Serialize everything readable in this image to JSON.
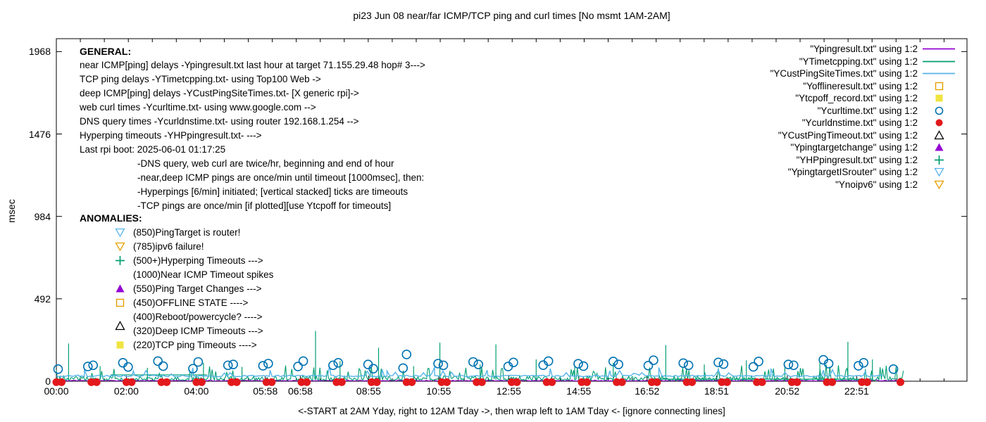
{
  "title": "pi23 Jun 08 near/far ICMP/TCP ping and curl times [No msmt 1AM-2AM]",
  "y_axis": {
    "label": "msec",
    "ticks": [
      0,
      492,
      984,
      1476,
      1968
    ]
  },
  "x_axis": {
    "ticks": [
      {
        "h": 0,
        "label": "00:00"
      },
      {
        "h": 2,
        "label": "02:00"
      },
      {
        "h": 4,
        "label": "04:00"
      },
      {
        "h": 5.967,
        "label": "05:58"
      },
      {
        "h": 6.967,
        "label": "06:58"
      },
      {
        "h": 8.917,
        "label": "08:55"
      },
      {
        "h": 10.917,
        "label": "10:55"
      },
      {
        "h": 12.917,
        "label": "12:55"
      },
      {
        "h": 14.917,
        "label": "14:55"
      },
      {
        "h": 16.867,
        "label": "16:52"
      },
      {
        "h": 18.85,
        "label": "18:51"
      },
      {
        "h": 20.867,
        "label": "20:52"
      },
      {
        "h": 22.85,
        "label": "22:51"
      }
    ],
    "caption": "<-START at 2AM Yday, right to 12AM Tday ->, then wrap left to 1AM Tday <- [ignore connecting lines]"
  },
  "general": {
    "heading": "GENERAL:",
    "lines": [
      "near ICMP[ping] delays -Ypingresult.txt last hour at target 71.155.29.48 hop# 3--->",
      "TCP ping delays -YTimetcpping.txt- using Top100 Web ->",
      "deep ICMP[ping] delays -YCustPingSiteTimes.txt- [X generic rpi]->",
      "web curl times -Ycurltime.txt- using www.google.com -->",
      "DNS query times -Ycurldnstime.txt- using router 192.168.1.254 -->",
      "Hyperping timeouts -YHPpingresult.txt- --->",
      "Last rpi boot: 2025-06-01 01:17:25"
    ],
    "notes": [
      "-DNS query, web curl are twice/hr, beginning and end of hour",
      "-near,deep ICMP pings are once/min until timeout [1000msec], then:",
      "-Hyperpings [6/min] initiated; [vertical stacked] ticks are timeouts",
      "-TCP pings are once/min [if plotted][use Ytcpoff for timeouts]"
    ]
  },
  "anomalies": {
    "heading": "ANOMALIES:",
    "items": [
      {
        "marker": "tri-down-open",
        "color": "#56B4E9",
        "label": "(850)PingTarget is router!"
      },
      {
        "marker": "tri-down-open",
        "color": "#E69F00",
        "label": "(785)ipv6 failure!"
      },
      {
        "marker": "plus",
        "color": "#009E73",
        "label": "(500+)Hyperping Timeouts --->"
      },
      {
        "marker": "none",
        "color": "",
        "label": "(1000)Near ICMP Timeout spikes"
      },
      {
        "marker": "tri-up-filled",
        "color": "#9400D3",
        "label": "(550)Ping Target Changes --->"
      },
      {
        "marker": "square-open",
        "color": "#E69F00",
        "label": "(450)OFFLINE STATE ---->"
      },
      {
        "marker": "none",
        "color": "",
        "label": "(400)Reboot/powercycle? ---->"
      },
      {
        "marker": "tri-up-open",
        "color": "#000000",
        "label": "(320)Deep ICMP Timeouts --->",
        "dy": -7
      },
      {
        "marker": "square-filled",
        "color": "#F0E442",
        "label": "(220)TCP ping Timeouts ---->"
      }
    ]
  },
  "legend": [
    {
      "label": "\"Ypingresult.txt\" using 1:2",
      "marker": "line",
      "color": "#9400D3"
    },
    {
      "label": "\"YTimetcpping.txt\" using 1:2",
      "marker": "line",
      "color": "#009E73"
    },
    {
      "label": "\"YCustPingSiteTimes.txt\" using 1:2",
      "marker": "line",
      "color": "#56B4E9"
    },
    {
      "label": "\"Yofflineresult.txt\" using 1:2",
      "marker": "square-open",
      "color": "#E69F00"
    },
    {
      "label": "\"Ytcpoff_record.txt\" using 1:2",
      "marker": "square-filled",
      "color": "#F0E442"
    },
    {
      "label": "\"Ycurltime.txt\" using 1:2",
      "marker": "circle-open",
      "color": "#0072B2"
    },
    {
      "label": "\"Ycurldnstime.txt\" using 1:2",
      "marker": "circle-filled",
      "color": "#E3191C"
    },
    {
      "label": "\"YCustPingTimeout.txt\" using 1:2",
      "marker": "tri-up-open",
      "color": "#000000"
    },
    {
      "label": "\"Ypingtargetchange\" using 1:2",
      "marker": "tri-up-filled",
      "color": "#9400D3"
    },
    {
      "label": "\"YHPpingresult.txt\" using 1:2",
      "marker": "plus",
      "color": "#009E73"
    },
    {
      "label": "\"YpingtargetISrouter\" using 1:2",
      "marker": "tri-down-open",
      "color": "#56B4E9"
    },
    {
      "label": "\"Ynoipv6\" using 1:2",
      "marker": "tri-down-open",
      "color": "#E69F00"
    }
  ],
  "chart_data": {
    "type": "line",
    "title": "pi23 Jun 08 near/far ICMP/TCP ping and curl times [No msmt 1AM-2AM]",
    "xlabel": "<-START at 2AM Yday, right to 12AM Tday ->, then wrap left to 1AM Tday <- [ignore connecting lines]",
    "ylabel": "msec",
    "ylim": [
      0,
      2045
    ],
    "yticks": [
      0,
      492,
      984,
      1476,
      1968
    ],
    "xlim_hours": [
      0,
      26
    ],
    "grid": false,
    "legend_position": "top-right-inside",
    "series": [
      {
        "name": "Ypingresult.txt",
        "desc": "near ICMP ping delay",
        "color": "#9400D3",
        "style": "line",
        "seed": 11,
        "baseline_msec": 2,
        "jitter_msec": 7,
        "x_start": 0,
        "x_end": 24.2,
        "step_h": 0.04
      },
      {
        "name": "YTimetcpping.txt",
        "desc": "TCP ping delay + hyperping timeout ticks",
        "color": "#009E73",
        "style": "line",
        "seed": 23,
        "baseline_msec": 6,
        "jitter_msec": 26,
        "x_start": 0,
        "x_end": 24.2,
        "step_h": 0.035,
        "flat_segments": [
          [
            1.55,
            4.3,
            38
          ],
          [
            16.9,
            23.3,
            12
          ]
        ],
        "timeout_spikes": [
          [
            0.35,
            225
          ],
          [
            1.25,
            90
          ],
          [
            2.6,
            80
          ],
          [
            4.2,
            110
          ],
          [
            5.3,
            85
          ],
          [
            7.4,
            300
          ],
          [
            8.1,
            120
          ],
          [
            9.2,
            200
          ],
          [
            10.2,
            90
          ],
          [
            10.95,
            230
          ],
          [
            12.1,
            100
          ],
          [
            12.55,
            220
          ],
          [
            13.7,
            130
          ],
          [
            14.8,
            95
          ],
          [
            15.9,
            110
          ],
          [
            17.4,
            215
          ],
          [
            18.5,
            100
          ],
          [
            19.7,
            125
          ],
          [
            20.8,
            95
          ],
          [
            21.8,
            110
          ],
          [
            22.6,
            235
          ],
          [
            23.3,
            130
          ]
        ]
      },
      {
        "name": "YCustPingSiteTimes.txt",
        "desc": "deep ICMP ping delay",
        "color": "#56B4E9",
        "style": "line",
        "seed": 37,
        "baseline_msec": 27,
        "jitter_msec": 9,
        "x_start": 0,
        "x_end": 23.6,
        "step_h": 0.08,
        "bump_spikes": [
          [
            0.8,
            70
          ],
          [
            2.2,
            62
          ],
          [
            3.9,
            80
          ],
          [
            6.1,
            65
          ],
          [
            7.8,
            90
          ],
          [
            9.3,
            72
          ],
          [
            10.8,
            85
          ],
          [
            12.3,
            66
          ],
          [
            14.1,
            76
          ],
          [
            15.8,
            62
          ],
          [
            17.2,
            82
          ],
          [
            18.9,
            70
          ],
          [
            20.4,
            76
          ],
          [
            21.9,
            66
          ],
          [
            23.1,
            60
          ]
        ]
      },
      {
        "name": "Ycurltime.txt",
        "desc": "web curl times (twice/hr)",
        "color": "#0072B2",
        "style": "points",
        "marker": "circle-open",
        "points": [
          [
            0.05,
            72
          ],
          [
            0.9,
            88
          ],
          [
            1.05,
            95
          ],
          [
            1.9,
            110
          ],
          [
            2.05,
            85
          ],
          [
            2.9,
            120
          ],
          [
            3.05,
            90
          ],
          [
            3.9,
            75
          ],
          [
            4.05,
            115
          ],
          [
            4.9,
            95
          ],
          [
            5.05,
            100
          ],
          [
            5.9,
            92
          ],
          [
            6.05,
            105
          ],
          [
            6.9,
            88
          ],
          [
            7.05,
            120
          ],
          [
            7.9,
            95
          ],
          [
            8.05,
            110
          ],
          [
            8.9,
            100
          ],
          [
            9.05,
            75
          ],
          [
            9.9,
            78
          ],
          [
            10.0,
            160
          ],
          [
            10.9,
            105
          ],
          [
            11.05,
            95
          ],
          [
            11.9,
            115
          ],
          [
            12.05,
            100
          ],
          [
            12.9,
            88
          ],
          [
            13.05,
            112
          ],
          [
            13.9,
            96
          ],
          [
            14.05,
            120
          ],
          [
            14.9,
            104
          ],
          [
            15.05,
            90
          ],
          [
            15.9,
            118
          ],
          [
            16.05,
            100
          ],
          [
            16.9,
            93
          ],
          [
            17.05,
            125
          ],
          [
            17.9,
            108
          ],
          [
            18.05,
            95
          ],
          [
            18.9,
            112
          ],
          [
            19.05,
            102
          ],
          [
            19.9,
            86
          ],
          [
            20.05,
            118
          ],
          [
            20.9,
            100
          ],
          [
            21.05,
            95
          ],
          [
            21.9,
            128
          ],
          [
            22.05,
            105
          ],
          [
            22.9,
            92
          ],
          [
            23.05,
            110
          ],
          [
            23.9,
            72
          ]
        ]
      },
      {
        "name": "Ycurldnstime.txt",
        "desc": "DNS query times (twice/hr)",
        "color": "#E3191C",
        "style": "points",
        "marker": "circle-filled",
        "schedule": {
          "start_h": 0,
          "end_h": 24,
          "offsets": [
            0,
            0.15
          ],
          "value_msec": 2.5
        },
        "extra_points": [
          [
            24.1,
            2.5
          ]
        ]
      }
    ]
  }
}
